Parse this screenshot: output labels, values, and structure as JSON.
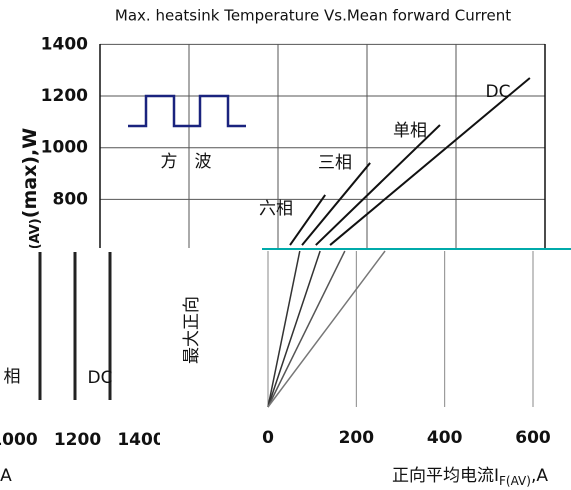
{
  "charts": [
    {
      "type": "line",
      "title": "Max. heatsink Temperature Vs.Mean forward Current",
      "ylabel": {
        "main": "P",
        "sub": "F(AV)",
        "rest": "(max),W"
      },
      "ylim": [
        0,
        1400
      ],
      "yticks": [
        800,
        1000,
        1200,
        1400
      ],
      "xlim": [
        0,
        1000
      ],
      "xgrid": [
        200,
        400,
        600,
        800
      ],
      "wave_label": "方　波",
      "series": [
        {
          "name": "DC",
          "color": "#111111",
          "x": [
            517,
            966
          ],
          "values": [
            623,
            1270
          ]
        },
        {
          "name": "单相",
          "color": "#111111",
          "x": [
            485,
            764
          ],
          "values": [
            623,
            1088
          ]
        },
        {
          "name": "三相",
          "color": "#111111",
          "x": [
            454,
            607
          ],
          "values": [
            623,
            941
          ]
        },
        {
          "name": "六相",
          "color": "#111111",
          "x": [
            427,
            506
          ],
          "values": [
            623,
            817
          ]
        }
      ]
    },
    {
      "type": "line",
      "ylabel": "最大正向",
      "xlabel": {
        "main": "正向平均电流I",
        "sub": "F(AV)",
        "rest": ",A"
      },
      "xlim": [
        0,
        600
      ],
      "xticks": [
        0,
        200,
        400,
        600
      ],
      "ylim": [
        0,
        600
      ],
      "yticks": [
        0,
        200,
        400,
        600
      ],
      "series": [
        {
          "color": "#333333",
          "x": [
            0,
            72
          ],
          "values": [
            0,
            600
          ]
        },
        {
          "color": "#333333",
          "x": [
            0,
            118
          ],
          "values": [
            0,
            600
          ]
        },
        {
          "color": "#555555",
          "x": [
            0,
            174
          ],
          "values": [
            0,
            600
          ]
        },
        {
          "color": "#777777",
          "x": [
            0,
            265
          ],
          "values": [
            0,
            600
          ]
        }
      ]
    },
    {
      "type": "fragment",
      "xlim": [
        1000,
        1400
      ],
      "xticks": [
        1000,
        1200,
        1400
      ],
      "labels": [
        "相",
        "DC",
        "A"
      ]
    }
  ]
}
